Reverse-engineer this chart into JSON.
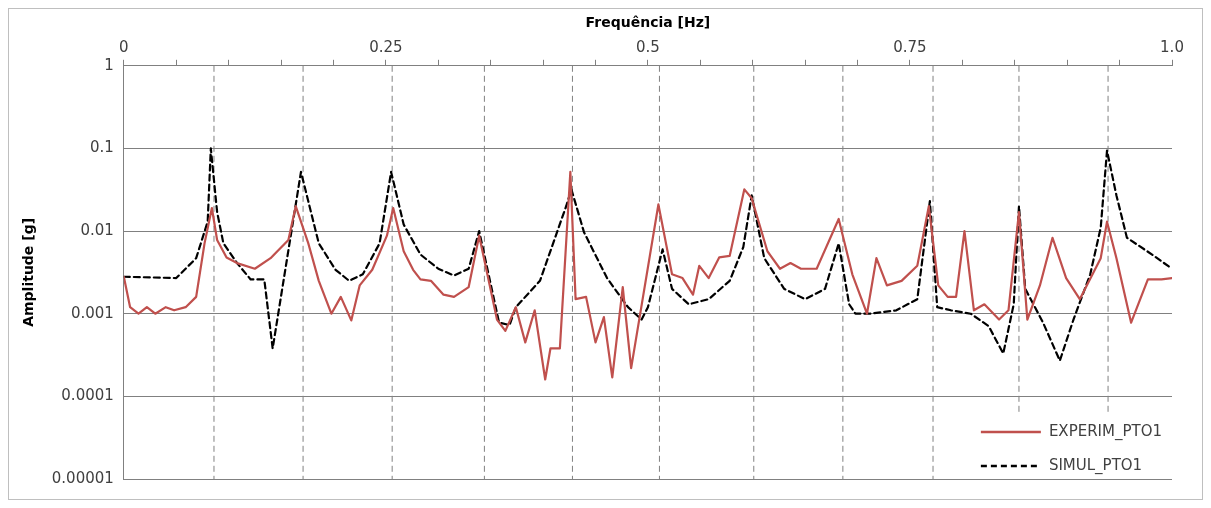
{
  "chart_data": {
    "type": "line",
    "xlabel": "Frequência [Hz]",
    "ylabel": "Amplitude [g]",
    "xlim": [
      0,
      1
    ],
    "xticks": [
      0,
      {
        "value": 0.05,
        "label": null
      },
      {
        "value": 0.1,
        "label": null
      },
      {
        "value": 0.15,
        "label": null
      },
      {
        "value": 0.2,
        "label": null
      },
      0.25,
      {
        "value": 0.3,
        "label": null
      },
      {
        "value": 0.35,
        "label": null
      },
      {
        "value": 0.4,
        "label": null
      },
      {
        "value": 0.45,
        "label": null
      },
      0.5,
      {
        "value": 0.55,
        "label": null
      },
      {
        "value": 0.6,
        "label": null
      },
      {
        "value": 0.65,
        "label": null
      },
      {
        "value": 0.7,
        "label": null
      },
      0.75,
      {
        "value": 0.8,
        "label": null
      },
      {
        "value": 0.85,
        "label": null
      },
      {
        "value": 0.9,
        "label": null
      },
      {
        "value": 0.95,
        "label": null
      },
      {
        "value": 1,
        "label": "1.0"
      }
    ],
    "ylim": [
      1e-05,
      1
    ],
    "yticks": [
      {
        "value": 1e-05,
        "label": "0.00001"
      },
      0.0001,
      0.001,
      0.01,
      0.1,
      1
    ],
    "log": "y",
    "grid": "y",
    "legend": "bottom right",
    "marker": "none",
    "series": [
      {
        "name": "EXPERIM_PTO1",
        "color": "#c0504d",
        "line_style": "solid",
        "x": [
          0,
          0.006,
          0.014,
          0.022,
          0.03,
          0.04,
          0.048,
          0.059,
          0.069,
          0.077,
          0.084,
          0.089,
          0.098,
          0.108,
          0.125,
          0.14,
          0.157,
          0.164,
          0.176,
          0.186,
          0.198,
          0.207,
          0.217,
          0.225,
          0.237,
          0.251,
          0.257,
          0.267,
          0.276,
          0.283,
          0.293,
          0.305,
          0.315,
          0.329,
          0.339,
          0.356,
          0.364,
          0.374,
          0.383,
          0.392,
          0.402,
          0.407,
          0.416,
          0.426,
          0.431,
          0.441,
          0.45,
          0.458,
          0.466,
          0.476,
          0.484,
          0.51,
          0.523,
          0.533,
          0.543,
          0.549,
          0.558,
          0.568,
          0.578,
          0.592,
          0.599,
          0.614,
          0.626,
          0.636,
          0.646,
          0.661,
          0.682,
          0.695,
          0.709,
          0.718,
          0.728,
          0.742,
          0.757,
          0.768,
          0.777,
          0.786,
          0.794,
          0.802,
          0.811,
          0.821,
          0.835,
          0.844,
          0.854,
          0.862,
          0.874,
          0.886,
          0.899,
          0.912,
          0.932,
          0.938,
          0.947,
          0.961,
          0.977,
          0.99,
          1
        ],
        "values": [
          0.0028,
          0.0012,
          0.001,
          0.0012,
          0.001,
          0.0012,
          0.0011,
          0.0012,
          0.0016,
          0.0071,
          0.019,
          0.0078,
          0.0048,
          0.0041,
          0.0035,
          0.0047,
          0.0078,
          0.02,
          0.0071,
          0.0025,
          0.001,
          0.0016,
          0.00083,
          0.0022,
          0.0034,
          0.0088,
          0.019,
          0.0057,
          0.0034,
          0.0026,
          0.0025,
          0.0017,
          0.0016,
          0.0021,
          0.0088,
          0.00085,
          0.00062,
          0.0012,
          0.00045,
          0.0011,
          0.00016,
          0.00038,
          0.00038,
          0.052,
          0.0015,
          0.0016,
          0.00045,
          0.00091,
          0.00017,
          0.0021,
          0.00022,
          0.021,
          0.003,
          0.0027,
          0.0017,
          0.0038,
          0.0027,
          0.0048,
          0.005,
          0.032,
          0.025,
          0.0057,
          0.0035,
          0.0041,
          0.0035,
          0.0035,
          0.014,
          0.003,
          0.001,
          0.0047,
          0.0022,
          0.0025,
          0.0038,
          0.02,
          0.0022,
          0.0016,
          0.0016,
          0.01,
          0.0011,
          0.0013,
          0.00085,
          0.0011,
          0.017,
          0.00085,
          0.0022,
          0.0083,
          0.0027,
          0.0015,
          0.0047,
          0.013,
          0.0047,
          0.00078,
          0.0026,
          0.0026,
          0.0027
        ]
      },
      {
        "name": "SIMUL_PTO1",
        "color": "#000000",
        "line_style": "dashed",
        "x": [
          0,
          0.05,
          0.069,
          0.08,
          0.083,
          0.089,
          0.095,
          0.108,
          0.121,
          0.134,
          0.142,
          0.169,
          0.186,
          0.202,
          0.215,
          0.228,
          0.244,
          0.255,
          0.267,
          0.283,
          0.3,
          0.315,
          0.329,
          0.339,
          0.358,
          0.368,
          0.374,
          0.397,
          0.422,
          0.427,
          0.439,
          0.461,
          0.481,
          0.494,
          0.5,
          0.514,
          0.523,
          0.539,
          0.558,
          0.578,
          0.591,
          0.599,
          0.611,
          0.63,
          0.65,
          0.669,
          0.682,
          0.692,
          0.698,
          0.711,
          0.737,
          0.757,
          0.769,
          0.776,
          0.789,
          0.808,
          0.825,
          0.839,
          0.849,
          0.854,
          0.86,
          0.877,
          0.893,
          0.906,
          0.922,
          0.932,
          0.938,
          0.947,
          0.957,
          0.981,
          1
        ],
        "values": [
          0.0028,
          0.0027,
          0.0047,
          0.013,
          0.1,
          0.017,
          0.0071,
          0.0041,
          0.0026,
          0.0026,
          0.00038,
          0.052,
          0.0071,
          0.0034,
          0.0025,
          0.003,
          0.0071,
          0.052,
          0.012,
          0.0052,
          0.0035,
          0.0029,
          0.0035,
          0.01,
          0.00078,
          0.00073,
          0.0012,
          0.0025,
          0.02,
          0.032,
          0.0097,
          0.0027,
          0.0012,
          0.00085,
          0.0012,
          0.006,
          0.002,
          0.0013,
          0.0015,
          0.0025,
          0.0064,
          0.027,
          0.0047,
          0.002,
          0.0015,
          0.002,
          0.0071,
          0.0013,
          0.001,
          0.001,
          0.0011,
          0.0015,
          0.023,
          0.0012,
          0.0011,
          0.001,
          0.00071,
          0.00033,
          0.0013,
          0.02,
          0.002,
          0.00078,
          0.00027,
          0.00085,
          0.003,
          0.011,
          0.094,
          0.027,
          0.0083,
          0.0052,
          0.0035
        ]
      }
    ],
    "ref_lines": [
      {
        "axis": "x",
        "value": 0.086,
        "color": "#808080",
        "line_style": "dashed"
      },
      {
        "axis": "x",
        "value": 0.171,
        "color": "#808080",
        "line_style": "dashed"
      },
      {
        "axis": "x",
        "value": 0.256,
        "color": "#808080",
        "line_style": "dashed"
      },
      {
        "axis": "x",
        "value": 0.344,
        "color": "#808080",
        "line_style": "dashed"
      },
      {
        "axis": "x",
        "value": 0.428,
        "color": "#808080",
        "line_style": "dashed"
      },
      {
        "axis": "x",
        "value": 0.511,
        "color": "#808080",
        "line_style": "dashed"
      },
      {
        "axis": "x",
        "value": 0.601,
        "color": "#808080",
        "line_style": "dashed"
      },
      {
        "axis": "x",
        "value": 0.686,
        "color": "#808080",
        "line_style": "dashed"
      },
      {
        "axis": "x",
        "value": 0.772,
        "color": "#808080",
        "line_style": "dashed"
      },
      {
        "axis": "x",
        "value": 0.854,
        "color": "#808080",
        "line_style": "dashed"
      },
      {
        "axis": "x",
        "value": 0.939,
        "color": "#808080",
        "line_style": "dashed"
      }
    ]
  }
}
